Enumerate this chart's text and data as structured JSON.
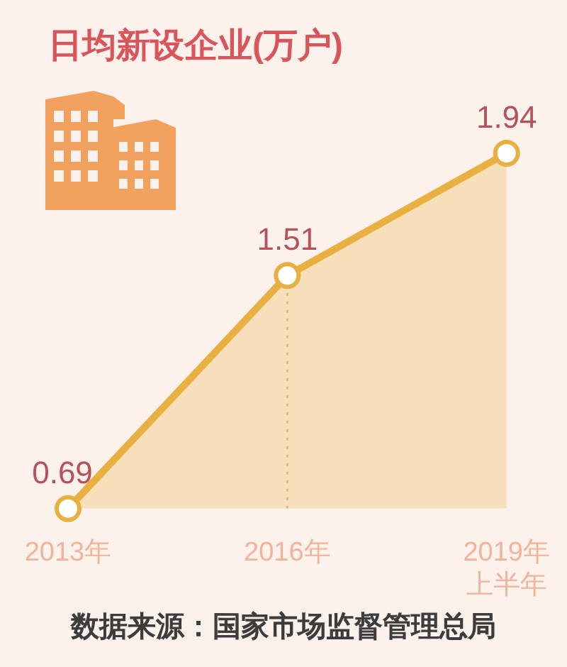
{
  "chart_data": {
    "type": "area",
    "title": "日均新设企业(万户)",
    "categories": [
      "2013年",
      "2016年",
      "2019年上半年"
    ],
    "values": [
      0.69,
      1.51,
      1.94
    ],
    "color": "#e8b040",
    "data_labels": true,
    "marker": "circle",
    "tick_labels": "x",
    "ref_lines": [
      {
        "axis": "x",
        "value": "2016年",
        "color": "#dcbfa4",
        "line_style": "dotted"
      }
    ],
    "annotations": [
      "数据来源：国家市场监督管理总局"
    ]
  }
}
